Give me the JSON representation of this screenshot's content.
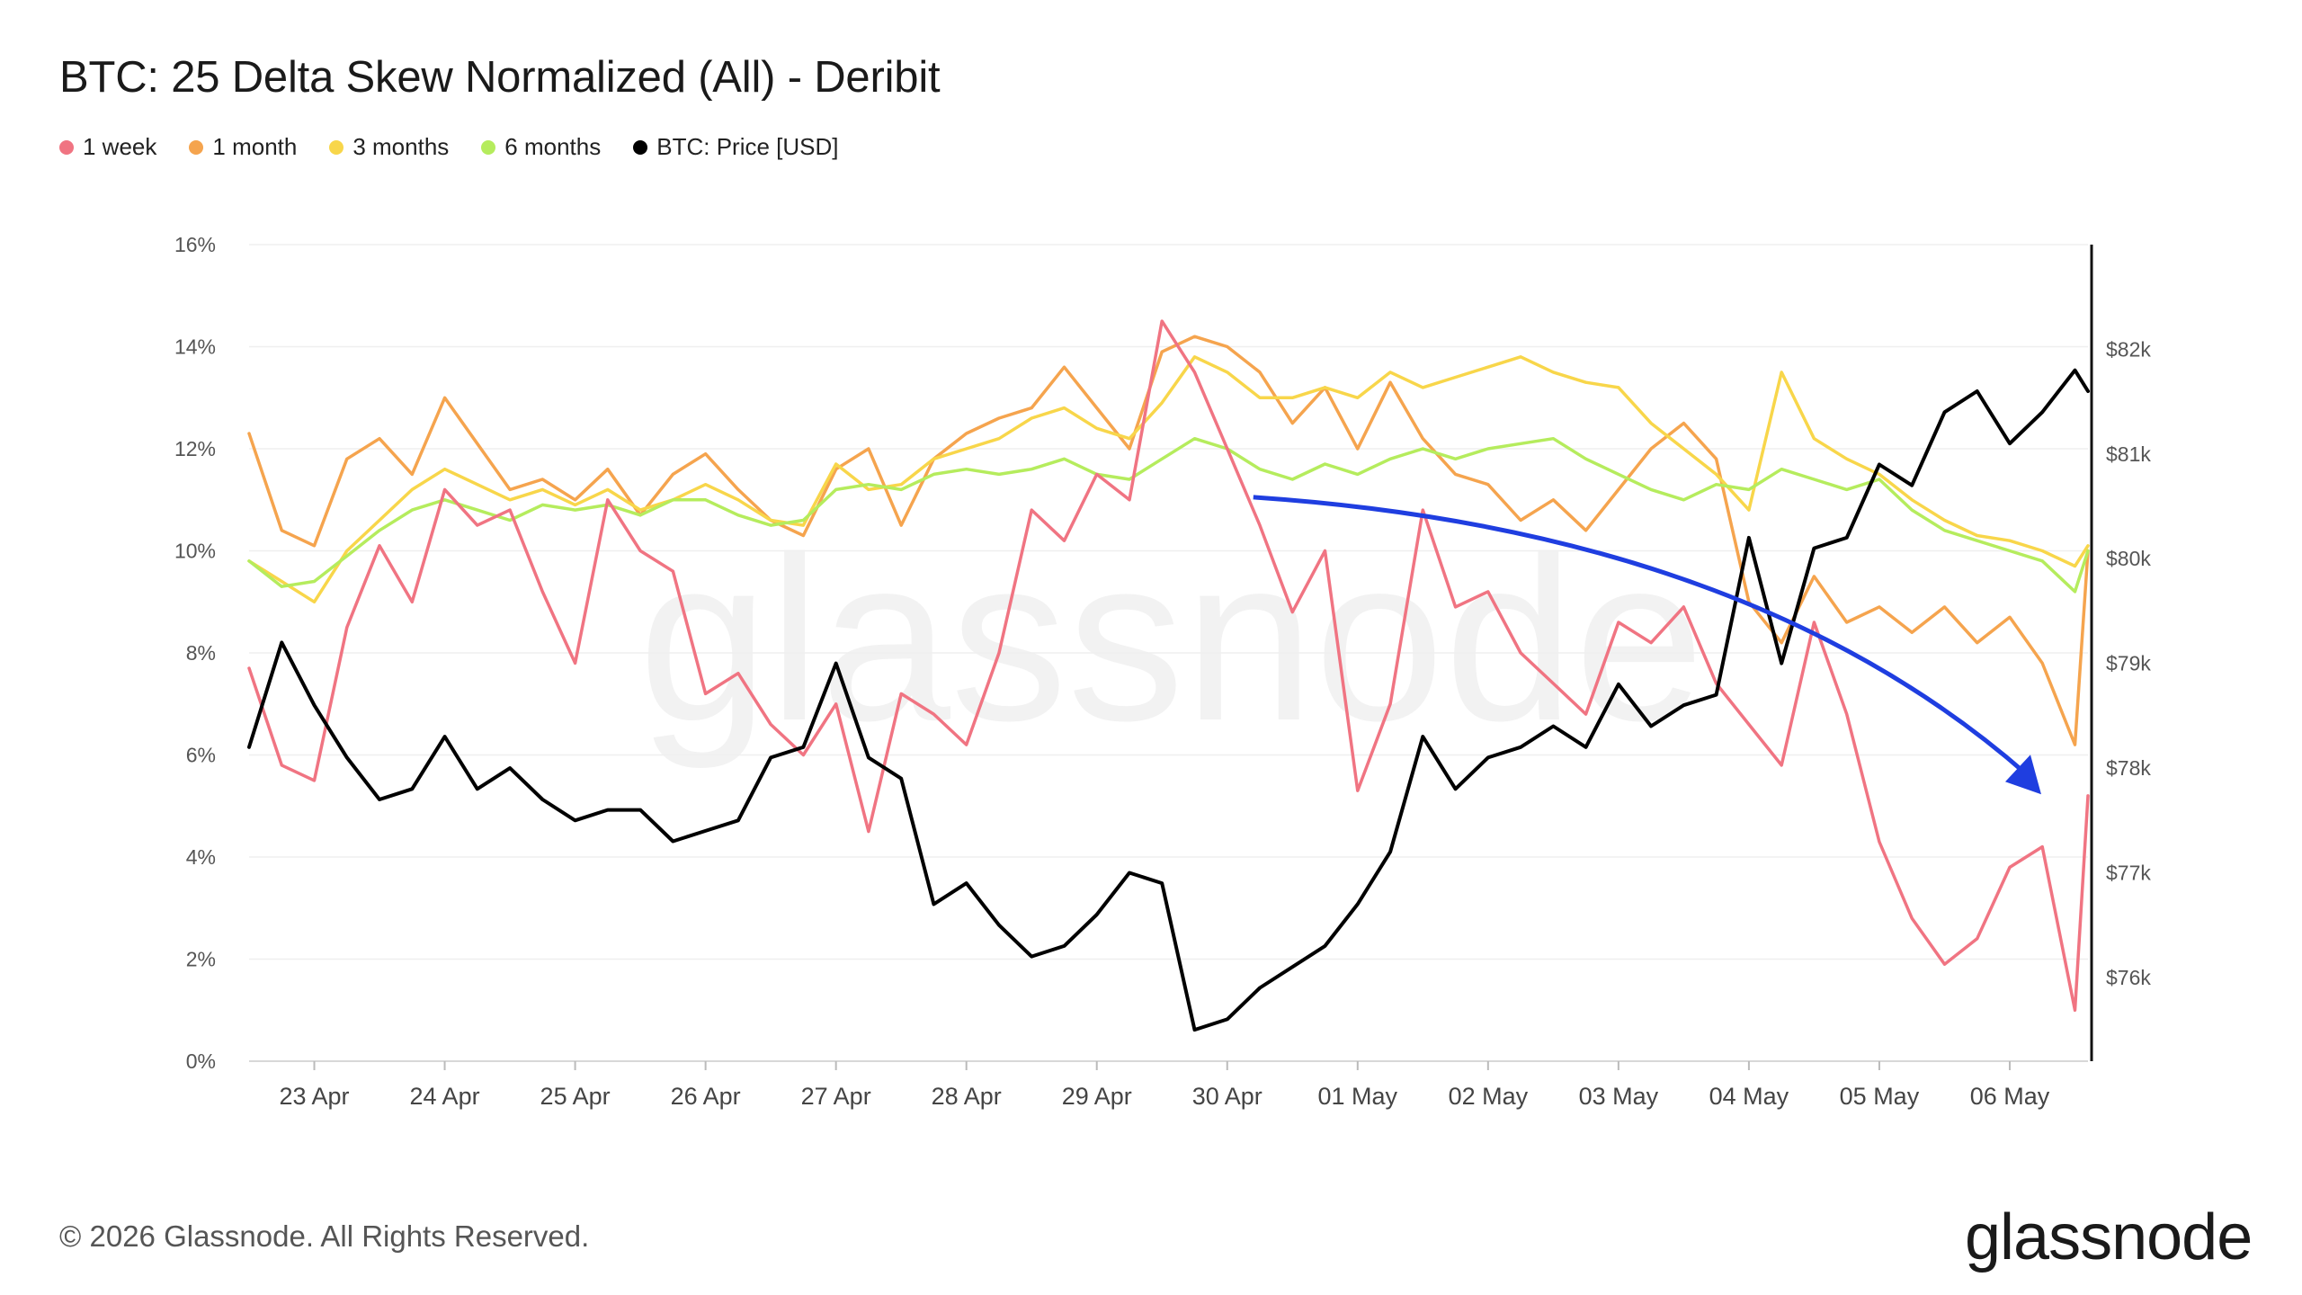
{
  "title": "BTC: 25 Delta Skew Normalized (All) - Deribit",
  "footer": "© 2026 Glassnode. All Rights Reserved.",
  "brand": "glassnode",
  "watermark": "glassnode",
  "legend": [
    {
      "label": "1 week",
      "color": "#f07482"
    },
    {
      "label": "1 month",
      "color": "#f5a44e"
    },
    {
      "label": "3 months",
      "color": "#f8d64a"
    },
    {
      "label": "6 months",
      "color": "#b5ec5d"
    },
    {
      "label": "BTC: Price [USD]",
      "color": "#000000"
    }
  ],
  "chart_data": {
    "type": "line",
    "x_ticks": [
      "23 Apr",
      "24 Apr",
      "25 Apr",
      "26 Apr",
      "27 Apr",
      "28 Apr",
      "29 Apr",
      "30 Apr",
      "01 May",
      "02 May",
      "03 May",
      "04 May",
      "05 May",
      "06 May"
    ],
    "y_left": {
      "min": 0,
      "max": 16,
      "ticks": [
        "0%",
        "2%",
        "4%",
        "6%",
        "8%",
        "10%",
        "12%",
        "14%",
        "16%"
      ]
    },
    "y_right": {
      "min": 75200,
      "max": 83000,
      "ticks": [
        "$76k",
        "$77k",
        "$78k",
        "$79k",
        "$80k",
        "$81k",
        "$82k"
      ]
    },
    "grid": true,
    "legend_position": "top-left",
    "annotation": "blue curved arrow from 30 Apr (~11%) down to 06 May (~5%)",
    "series": [
      {
        "name": "1 week",
        "color": "#f07482",
        "axis": "left",
        "x": [
          22.5,
          22.75,
          23,
          23.25,
          23.5,
          23.75,
          24,
          24.25,
          24.5,
          24.75,
          25,
          25.25,
          25.5,
          25.75,
          26,
          26.25,
          26.5,
          26.75,
          27,
          27.25,
          27.5,
          27.75,
          28,
          28.25,
          28.5,
          28.75,
          29,
          29.25,
          29.5,
          29.75,
          30,
          30.25,
          30.5,
          30.75,
          31,
          31.25,
          31.5,
          31.75,
          32,
          32.25,
          32.5,
          32.75,
          33,
          33.25,
          33.5,
          33.75,
          34,
          34.25,
          34.5,
          34.75,
          35,
          35.25,
          35.5,
          35.75,
          36,
          36.25,
          36.5,
          36.6
        ],
        "y": [
          7.7,
          5.8,
          5.5,
          8.5,
          10.1,
          9.0,
          11.2,
          10.5,
          10.8,
          9.2,
          7.8,
          11.0,
          10.0,
          9.6,
          7.2,
          7.6,
          6.6,
          6.0,
          7.0,
          4.5,
          7.2,
          6.8,
          6.2,
          8.0,
          10.8,
          10.2,
          11.5,
          11.0,
          14.5,
          13.5,
          12.0,
          10.5,
          8.8,
          10.0,
          5.3,
          7.0,
          10.8,
          8.9,
          9.2,
          8.0,
          7.4,
          6.8,
          8.6,
          8.2,
          8.9,
          7.4,
          6.6,
          5.8,
          8.6,
          6.8,
          4.3,
          2.8,
          1.9,
          2.4,
          3.8,
          4.2,
          1.0,
          5.2
        ]
      },
      {
        "name": "1 month",
        "color": "#f5a44e",
        "axis": "left",
        "x": [
          22.5,
          22.75,
          23,
          23.25,
          23.5,
          23.75,
          24,
          24.25,
          24.5,
          24.75,
          25,
          25.25,
          25.5,
          25.75,
          26,
          26.25,
          26.5,
          26.75,
          27,
          27.25,
          27.5,
          27.75,
          28,
          28.25,
          28.5,
          28.75,
          29,
          29.25,
          29.5,
          29.75,
          30,
          30.25,
          30.5,
          30.75,
          31,
          31.25,
          31.5,
          31.75,
          32,
          32.25,
          32.5,
          32.75,
          33,
          33.25,
          33.5,
          33.75,
          34,
          34.25,
          34.5,
          34.75,
          35,
          35.25,
          35.5,
          35.75,
          36,
          36.25,
          36.5,
          36.6
        ],
        "y": [
          12.3,
          10.4,
          10.1,
          11.8,
          12.2,
          11.5,
          13.0,
          12.1,
          11.2,
          11.4,
          11.0,
          11.6,
          10.7,
          11.5,
          11.9,
          11.2,
          10.6,
          10.3,
          11.6,
          12.0,
          10.5,
          11.8,
          12.3,
          12.6,
          12.8,
          13.6,
          12.8,
          12.0,
          13.9,
          14.2,
          14.0,
          13.5,
          12.5,
          13.2,
          12.0,
          13.3,
          12.2,
          11.5,
          11.3,
          10.6,
          11.0,
          10.4,
          11.2,
          12.0,
          12.5,
          11.8,
          9.0,
          8.2,
          9.5,
          8.6,
          8.9,
          8.4,
          8.9,
          8.2,
          8.7,
          7.8,
          6.2,
          10.0
        ]
      },
      {
        "name": "3 months",
        "color": "#f8d64a",
        "axis": "left",
        "x": [
          22.5,
          22.75,
          23,
          23.25,
          23.5,
          23.75,
          24,
          24.25,
          24.5,
          24.75,
          25,
          25.25,
          25.5,
          25.75,
          26,
          26.25,
          26.5,
          26.75,
          27,
          27.25,
          27.5,
          27.75,
          28,
          28.25,
          28.5,
          28.75,
          29,
          29.25,
          29.5,
          29.75,
          30,
          30.25,
          30.5,
          30.75,
          31,
          31.25,
          31.5,
          31.75,
          32,
          32.25,
          32.5,
          32.75,
          33,
          33.25,
          33.5,
          33.75,
          34,
          34.25,
          34.5,
          34.75,
          35,
          35.25,
          35.5,
          35.75,
          36,
          36.25,
          36.5,
          36.6
        ],
        "y": [
          9.8,
          9.4,
          9.0,
          10.0,
          10.6,
          11.2,
          11.6,
          11.3,
          11.0,
          11.2,
          10.9,
          11.2,
          10.8,
          11.0,
          11.3,
          11.0,
          10.6,
          10.5,
          11.7,
          11.2,
          11.3,
          11.8,
          12.0,
          12.2,
          12.6,
          12.8,
          12.4,
          12.2,
          12.9,
          13.8,
          13.5,
          13.0,
          13.0,
          13.2,
          13.0,
          13.5,
          13.2,
          13.4,
          13.6,
          13.8,
          13.5,
          13.3,
          13.2,
          12.5,
          12.0,
          11.5,
          10.8,
          13.5,
          12.2,
          11.8,
          11.5,
          11.0,
          10.6,
          10.3,
          10.2,
          10.0,
          9.7,
          10.1
        ]
      },
      {
        "name": "6 months",
        "color": "#b5ec5d",
        "axis": "left",
        "x": [
          22.5,
          22.75,
          23,
          23.25,
          23.5,
          23.75,
          24,
          24.25,
          24.5,
          24.75,
          25,
          25.25,
          25.5,
          25.75,
          26,
          26.25,
          26.5,
          26.75,
          27,
          27.25,
          27.5,
          27.75,
          28,
          28.25,
          28.5,
          28.75,
          29,
          29.25,
          29.5,
          29.75,
          30,
          30.25,
          30.5,
          30.75,
          31,
          31.25,
          31.5,
          31.75,
          32,
          32.25,
          32.5,
          32.75,
          33,
          33.25,
          33.5,
          33.75,
          34,
          34.25,
          34.5,
          34.75,
          35,
          35.25,
          35.5,
          35.75,
          36,
          36.25,
          36.5,
          36.6
        ],
        "y": [
          9.8,
          9.3,
          9.4,
          9.9,
          10.4,
          10.8,
          11.0,
          10.8,
          10.6,
          10.9,
          10.8,
          10.9,
          10.7,
          11.0,
          11.0,
          10.7,
          10.5,
          10.6,
          11.2,
          11.3,
          11.2,
          11.5,
          11.6,
          11.5,
          11.6,
          11.8,
          11.5,
          11.4,
          11.8,
          12.2,
          12.0,
          11.6,
          11.4,
          11.7,
          11.5,
          11.8,
          12.0,
          11.8,
          12.0,
          12.1,
          12.2,
          11.8,
          11.5,
          11.2,
          11.0,
          11.3,
          11.2,
          11.6,
          11.4,
          11.2,
          11.4,
          10.8,
          10.4,
          10.2,
          10.0,
          9.8,
          9.2,
          10.0
        ]
      },
      {
        "name": "BTC: Price [USD]",
        "color": "#000000",
        "axis": "right",
        "x": [
          22.5,
          22.75,
          23,
          23.25,
          23.5,
          23.75,
          24,
          24.25,
          24.5,
          24.75,
          25,
          25.25,
          25.5,
          25.75,
          26,
          26.25,
          26.5,
          26.75,
          27,
          27.25,
          27.5,
          27.75,
          28,
          28.25,
          28.5,
          28.75,
          29,
          29.25,
          29.5,
          29.75,
          30,
          30.25,
          30.5,
          30.75,
          31,
          31.25,
          31.5,
          31.75,
          32,
          32.25,
          32.5,
          32.75,
          33,
          33.25,
          33.5,
          33.75,
          34,
          34.25,
          34.5,
          34.75,
          35,
          35.25,
          35.5,
          35.75,
          36,
          36.25,
          36.5,
          36.6
        ],
        "y": [
          78.2,
          79.2,
          78.6,
          78.1,
          77.7,
          77.8,
          78.3,
          77.8,
          78.0,
          77.7,
          77.5,
          77.6,
          77.6,
          77.3,
          77.4,
          77.5,
          78.1,
          78.2,
          79.0,
          78.1,
          77.9,
          76.7,
          76.9,
          76.5,
          76.2,
          76.3,
          76.6,
          77.0,
          76.9,
          75.5,
          75.6,
          75.9,
          76.1,
          76.3,
          76.7,
          77.2,
          78.3,
          77.8,
          78.1,
          78.2,
          78.4,
          78.2,
          78.8,
          78.4,
          78.6,
          78.7,
          80.2,
          79.0,
          80.1,
          80.2,
          80.9,
          80.7,
          81.4,
          81.6,
          81.1,
          81.4,
          81.8,
          81.6
        ]
      }
    ]
  }
}
